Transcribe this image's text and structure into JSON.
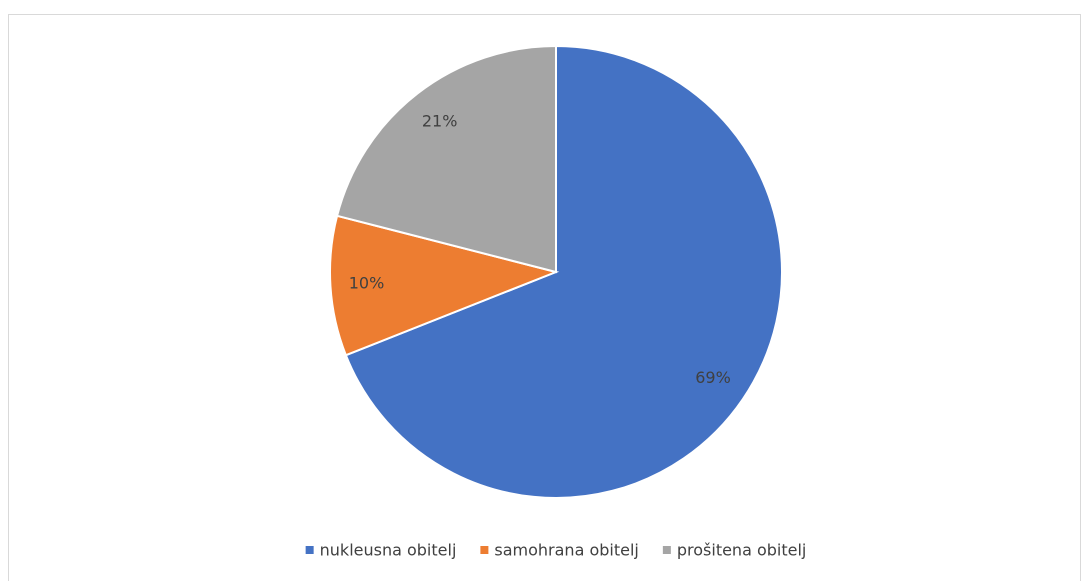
{
  "chart_data": {
    "type": "pie",
    "categories": [
      "nukleusna obitelj",
      "samohrana obitelj",
      "prošitena obitelj"
    ],
    "values": [
      69,
      10,
      21
    ],
    "value_labels": [
      "69%",
      "10%",
      "21%"
    ],
    "colors": [
      "#4472c4",
      "#ed7d31",
      "#a5a5a5"
    ],
    "legend": "bottom"
  }
}
